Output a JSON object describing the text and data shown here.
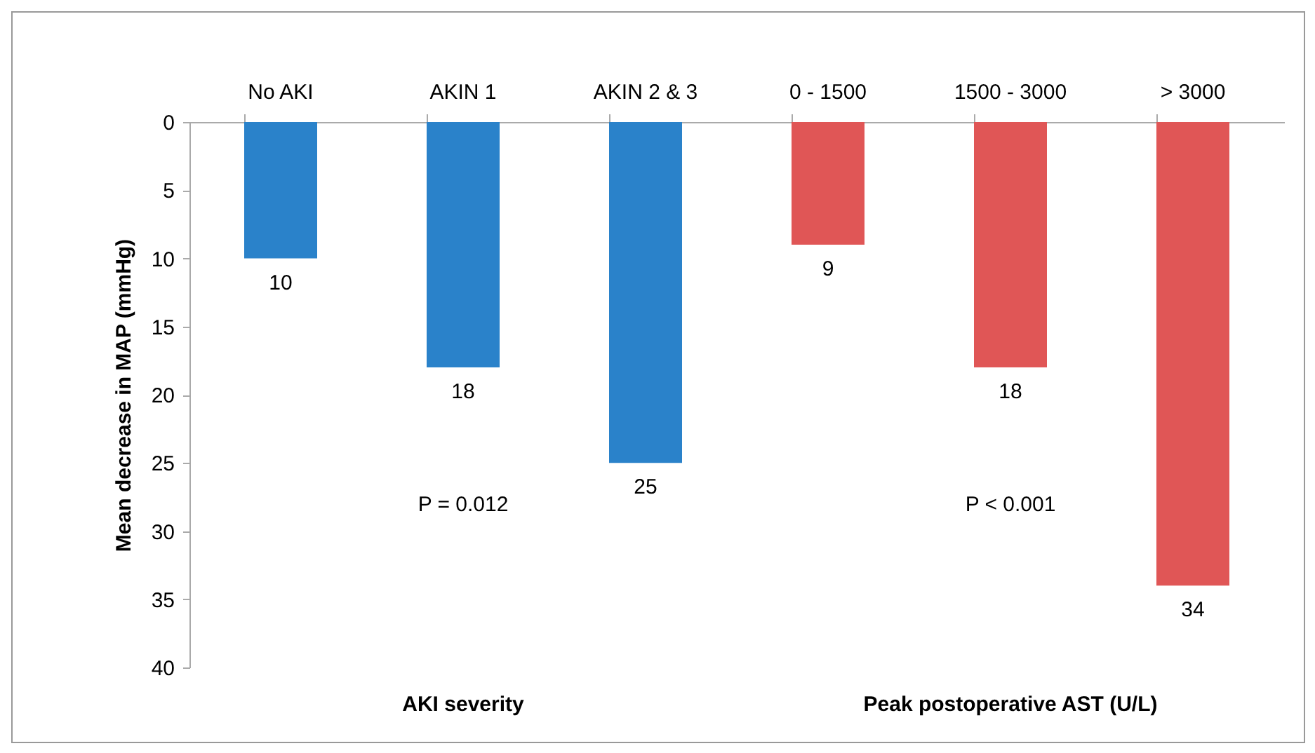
{
  "chart_data": {
    "type": "bar",
    "ylabel": "Mean decrease in MAP (mmHg)",
    "categories": [
      "No AKI",
      "AKIN 1",
      "AKIN 2 & 3",
      "0 - 1500",
      "1500 - 3000",
      "> 3000"
    ],
    "values": [
      10,
      18,
      25,
      9,
      18,
      34
    ],
    "colors": [
      "#2a82ca",
      "#2a82ca",
      "#2a82ca",
      "#e05656",
      "#e05656",
      "#e05656"
    ],
    "ylim": [
      40,
      0
    ],
    "yticks": [
      0,
      5,
      10,
      15,
      20,
      25,
      30,
      35,
      40
    ],
    "data_labels": true,
    "grid": false,
    "annotations": [
      "P = 0.012",
      "P < 0.001",
      "AKI severity",
      "Peak postoperative AST (U/L)"
    ]
  }
}
